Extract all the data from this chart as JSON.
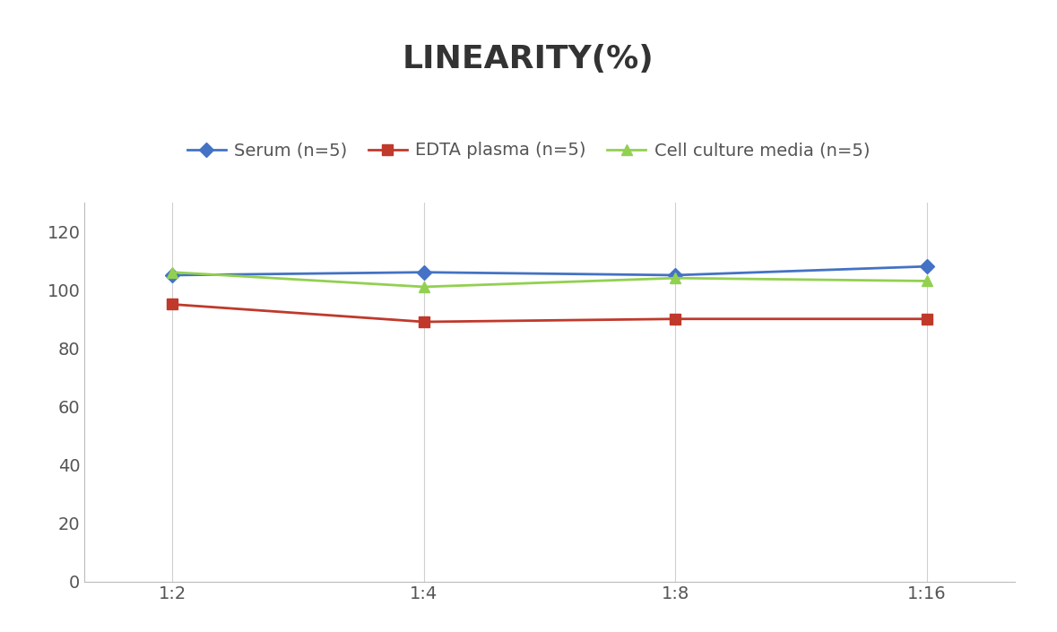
{
  "title": "LINEARITY(%)",
  "x_labels": [
    "1:2",
    "1:4",
    "1:8",
    "1:16"
  ],
  "x_values": [
    0,
    1,
    2,
    3
  ],
  "series": [
    {
      "label": "Serum (n=5)",
      "values": [
        105,
        106,
        105,
        108
      ],
      "color": "#4472C4",
      "marker": "D",
      "marker_size": 8,
      "linewidth": 2
    },
    {
      "label": "EDTA plasma (n=5)",
      "values": [
        95,
        89,
        90,
        90
      ],
      "color": "#C0392B",
      "marker": "s",
      "marker_size": 8,
      "linewidth": 2
    },
    {
      "label": "Cell culture media (n=5)",
      "values": [
        106,
        101,
        104,
        103
      ],
      "color": "#92D050",
      "marker": "^",
      "marker_size": 9,
      "linewidth": 2
    }
  ],
  "ylim": [
    0,
    130
  ],
  "yticks": [
    0,
    20,
    40,
    60,
    80,
    100,
    120
  ],
  "background_color": "#ffffff",
  "title_fontsize": 26,
  "legend_fontsize": 14,
  "tick_fontsize": 14,
  "grid_color": "#d0d0d0",
  "grid_linewidth": 0.8,
  "title_color": "#333333",
  "tick_color": "#555555"
}
